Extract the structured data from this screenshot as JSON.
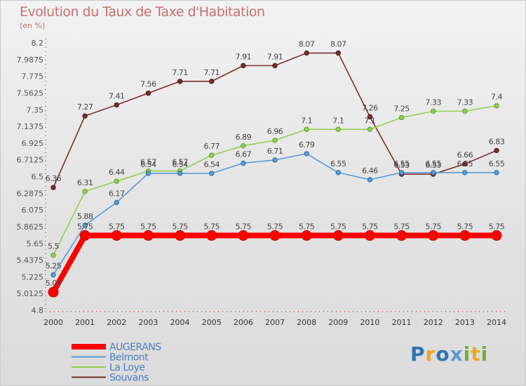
{
  "title": "Evolution du Taux de Taxe d'Habitation",
  "unit_label": "(en %)",
  "logo_text": "Proxiti",
  "colors": {
    "title": "#c87070",
    "axis_text": "#555555",
    "AUGERANS": "#ff0000",
    "Belmont": "#5b9bd5",
    "La Loye": "#92d050",
    "Souvans": "#7b2e2e"
  },
  "chart_data": {
    "type": "line",
    "title": "Evolution du Taux de Taxe d'Habitation",
    "ylabel": "(en %)",
    "x": [
      "2000",
      "2001",
      "2002",
      "2003",
      "2004",
      "2005",
      "2006",
      "2007",
      "2008",
      "2009",
      "2010",
      "2011",
      "2012",
      "2013",
      "2014"
    ],
    "ylim": [
      4.8,
      8.2
    ],
    "yticks": [
      "8.2",
      "7.9875",
      "7.775",
      "7.5625",
      "7.35",
      "7.1375",
      "6.925",
      "6.7125",
      "6.5",
      "6.2875",
      "6.075",
      "5.8625",
      "5.65",
      "5.4375",
      "5.225",
      "5.0125",
      "4.8"
    ],
    "series": [
      {
        "name": "AUGERANS",
        "values": [
          5.03,
          5.75,
          5.75,
          5.75,
          5.75,
          5.75,
          5.75,
          5.75,
          5.75,
          5.75,
          5.75,
          5.75,
          5.75,
          5.75,
          5.75
        ],
        "labels": [
          "5.03",
          "5.75",
          "5.75",
          "5.75",
          "5.75",
          "5.75",
          "5.75",
          "5.75",
          "5.75",
          "5.75",
          "5.75",
          "5.75",
          "5.75",
          "5.75",
          "5.75"
        ]
      },
      {
        "name": "Belmont",
        "values": [
          5.25,
          5.88,
          6.17,
          6.54,
          6.54,
          6.54,
          6.67,
          6.71,
          6.79,
          6.55,
          6.46,
          6.55,
          6.55,
          6.55,
          6.55
        ],
        "labels": [
          "5.25",
          "5.88",
          "6.17",
          "6.54",
          "6.54",
          "6.54",
          "6.67",
          "6.71",
          "6.79",
          "6.55",
          "6.46",
          "6.55",
          "6.55",
          "6.55",
          "6.55"
        ]
      },
      {
        "name": "La Loye",
        "values": [
          5.5,
          6.31,
          6.44,
          6.57,
          6.57,
          6.77,
          6.89,
          6.96,
          7.1,
          7.1,
          7.1,
          7.25,
          7.33,
          7.33,
          7.4
        ],
        "labels": [
          "5.5",
          "6.31",
          "6.44",
          "6.57",
          "6.57",
          "6.77",
          "6.89",
          "6.96",
          "7.1",
          "7.1",
          "7.1",
          "7.25",
          "7.33",
          "7.33",
          "7.4"
        ]
      },
      {
        "name": "Souvans",
        "values": [
          6.36,
          7.27,
          7.41,
          7.56,
          7.71,
          7.71,
          7.91,
          7.91,
          8.07,
          8.07,
          7.26,
          6.53,
          6.53,
          6.66,
          6.83
        ],
        "labels": [
          "6.36",
          "7.27",
          "7.41",
          "7.56",
          "7.71",
          "7.71",
          "7.91",
          "7.91",
          "8.07",
          "8.07",
          "7.26",
          "6.53",
          "6.53",
          "6.66",
          "6.83"
        ]
      }
    ],
    "grid": false,
    "legend_position": "bottom-left"
  }
}
